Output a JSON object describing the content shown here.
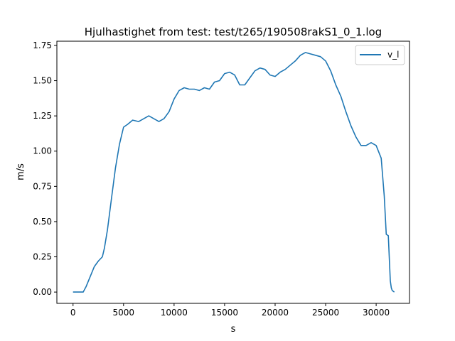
{
  "chart_data": {
    "type": "line",
    "title": "Hjulhastighet from test: test/t265/190508rakS1_0_1.log",
    "xlabel": "s",
    "ylabel": "m/s",
    "xlim": [
      -1600,
      33300
    ],
    "ylim": [
      -0.08,
      1.78
    ],
    "xticks": [
      0,
      5000,
      10000,
      15000,
      20000,
      25000,
      30000
    ],
    "xtick_labels": [
      "0",
      "5000",
      "10000",
      "15000",
      "20000",
      "25000",
      "30000"
    ],
    "yticks": [
      0.0,
      0.25,
      0.5,
      0.75,
      1.0,
      1.25,
      1.5,
      1.75
    ],
    "ytick_labels": [
      "0.00",
      "0.25",
      "0.50",
      "0.75",
      "1.00",
      "1.25",
      "1.50",
      "1.75"
    ],
    "grid": false,
    "legend_position": "top-right",
    "series": [
      {
        "name": "v_l",
        "color": "#1f77b4",
        "x": [
          0,
          1000,
          1300,
          1700,
          2100,
          2500,
          2900,
          3100,
          3400,
          3800,
          4200,
          4600,
          5000,
          5400,
          5900,
          6500,
          7000,
          7500,
          8000,
          8500,
          9000,
          9500,
          10000,
          10500,
          11000,
          11500,
          12000,
          12500,
          13000,
          13500,
          14000,
          14500,
          15000,
          15500,
          16000,
          16500,
          17000,
          17500,
          18000,
          18500,
          19000,
          19500,
          20000,
          20500,
          21000,
          21500,
          22000,
          22500,
          23000,
          23500,
          24000,
          24500,
          25000,
          25500,
          26000,
          26500,
          27000,
          27500,
          28000,
          28500,
          29000,
          29500,
          30000,
          30500,
          30800,
          31000,
          31200,
          31400,
          31500,
          31600,
          31700,
          31800
        ],
        "y": [
          0.0,
          0.0,
          0.04,
          0.11,
          0.18,
          0.22,
          0.25,
          0.31,
          0.44,
          0.66,
          0.88,
          1.05,
          1.17,
          1.19,
          1.22,
          1.21,
          1.23,
          1.25,
          1.23,
          1.21,
          1.23,
          1.28,
          1.37,
          1.43,
          1.45,
          1.44,
          1.44,
          1.43,
          1.45,
          1.44,
          1.49,
          1.5,
          1.55,
          1.56,
          1.54,
          1.47,
          1.47,
          1.52,
          1.57,
          1.59,
          1.58,
          1.54,
          1.53,
          1.56,
          1.58,
          1.61,
          1.64,
          1.68,
          1.7,
          1.69,
          1.68,
          1.67,
          1.64,
          1.57,
          1.47,
          1.39,
          1.28,
          1.18,
          1.1,
          1.04,
          1.04,
          1.06,
          1.04,
          0.95,
          0.68,
          0.41,
          0.4,
          0.08,
          0.03,
          0.01,
          0.005,
          0.0
        ]
      }
    ]
  }
}
